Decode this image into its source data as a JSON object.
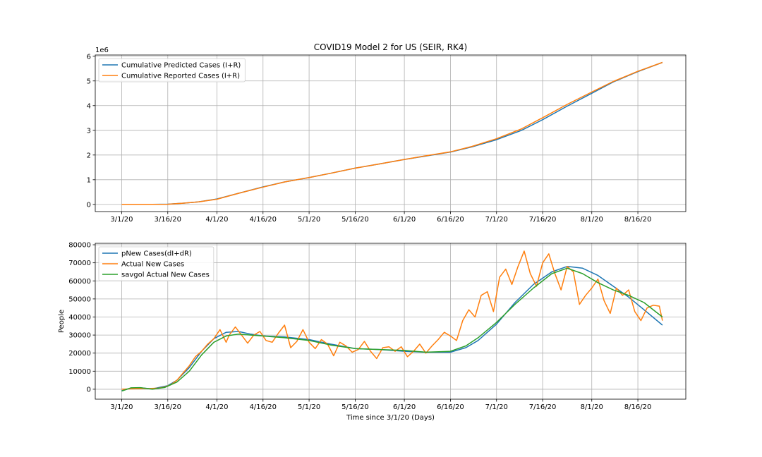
{
  "figure": {
    "title": "COVID19 Model 2 for US (SEIR, RK4)"
  },
  "chart_data": [
    {
      "type": "line",
      "title": "COVID19 Model 2 for US (SEIR, RK4)",
      "xlabel": "",
      "ylabel": "",
      "y_offset_label": "1e6",
      "x_ticks": [
        "3/1/20",
        "3/16/20",
        "4/1/20",
        "4/16/20",
        "5/1/20",
        "5/16/20",
        "6/1/20",
        "6/16/20",
        "7/1/20",
        "7/16/20",
        "8/1/20",
        "8/16/20"
      ],
      "x_tick_days": [
        0,
        15,
        31,
        46,
        61,
        76,
        92,
        107,
        122,
        137,
        153,
        168
      ],
      "y_ticks": [
        "0",
        "1",
        "2",
        "3",
        "4",
        "5",
        "6"
      ],
      "y_tick_values": [
        0,
        1,
        2,
        3,
        4,
        5,
        6
      ],
      "xlim": [
        -8.6,
        183.6
      ],
      "ylim": [
        -0.29,
        6.05
      ],
      "grid": true,
      "legend": "upper-left",
      "series": [
        {
          "name": "Cumulative Predicted Cases (I+R)",
          "color": "#1f77b4",
          "x": [
            0,
            10,
            15,
            20,
            25,
            31,
            38,
            46,
            53,
            61,
            68,
            76,
            84,
            92,
            99,
            107,
            114,
            122,
            130,
            137,
            145,
            153,
            160,
            168,
            176
          ],
          "y": [
            0,
            0.001,
            0.01,
            0.05,
            0.1,
            0.22,
            0.45,
            0.71,
            0.91,
            1.09,
            1.26,
            1.47,
            1.64,
            1.82,
            1.96,
            2.12,
            2.33,
            2.62,
            2.99,
            3.43,
            3.98,
            4.5,
            4.96,
            5.38,
            5.75
          ]
        },
        {
          "name": "Cumulative Reported Cases (I+R)",
          "color": "#ff7f0e",
          "x": [
            0,
            10,
            15,
            20,
            25,
            31,
            38,
            46,
            53,
            61,
            68,
            76,
            84,
            92,
            99,
            107,
            114,
            122,
            130,
            137,
            145,
            153,
            160,
            168,
            176
          ],
          "y": [
            0,
            0.001,
            0.008,
            0.05,
            0.1,
            0.21,
            0.45,
            0.7,
            0.91,
            1.09,
            1.26,
            1.47,
            1.64,
            1.82,
            1.97,
            2.13,
            2.35,
            2.66,
            3.05,
            3.51,
            4.05,
            4.55,
            4.98,
            5.39,
            5.75
          ]
        }
      ]
    },
    {
      "type": "line",
      "title": "",
      "xlabel": "Time since 3/1/20 (Days)",
      "ylabel": "People",
      "x_ticks": [
        "3/1/20",
        "3/16/20",
        "4/1/20",
        "4/16/20",
        "5/1/20",
        "5/16/20",
        "6/1/20",
        "6/16/20",
        "7/1/20",
        "7/16/20",
        "8/1/20",
        "8/16/20"
      ],
      "x_tick_days": [
        0,
        15,
        31,
        46,
        61,
        76,
        92,
        107,
        122,
        137,
        153,
        168
      ],
      "y_ticks": [
        "0",
        "10000",
        "20000",
        "30000",
        "40000",
        "50000",
        "60000",
        "70000",
        "80000"
      ],
      "y_tick_values": [
        0,
        10000,
        20000,
        30000,
        40000,
        50000,
        60000,
        70000,
        80000
      ],
      "xlim": [
        -8.6,
        183.6
      ],
      "ylim": [
        -5500,
        80800
      ],
      "grid": true,
      "legend": "upper-left",
      "series": [
        {
          "name": "pNew Cases(dI+dR)",
          "color": "#1f77b4",
          "x": [
            0,
            3,
            6,
            10,
            15,
            18,
            22,
            26,
            30,
            34,
            38,
            42,
            46,
            53,
            61,
            68,
            76,
            84,
            92,
            99,
            107,
            112,
            116,
            122,
            128,
            134,
            140,
            145,
            150,
            155,
            160,
            165,
            170,
            176
          ],
          "y": [
            -800,
            600,
            800,
            200,
            2000,
            5000,
            12000,
            21000,
            28000,
            31500,
            32000,
            30500,
            29500,
            29000,
            27500,
            25000,
            22500,
            22000,
            21000,
            20500,
            20500,
            23000,
            27000,
            36000,
            48000,
            58000,
            65000,
            68000,
            67000,
            63000,
            57000,
            51000,
            44000,
            35500
          ]
        },
        {
          "name": "Actual New Cases",
          "color": "#ff7f0e",
          "x": [
            0,
            3,
            6,
            9,
            12,
            14,
            16,
            18,
            20,
            22,
            24,
            26,
            28,
            30,
            32,
            34,
            35,
            37,
            39,
            41,
            43,
            45,
            47,
            49,
            51,
            53,
            55,
            57,
            59,
            61,
            63,
            65,
            67,
            69,
            71,
            73,
            75,
            77,
            79,
            81,
            83,
            85,
            87,
            89,
            91,
            93,
            95,
            97,
            99,
            101,
            103,
            105,
            107,
            109,
            111,
            113,
            115,
            117,
            119,
            121,
            123,
            125,
            127,
            129,
            131,
            133,
            135,
            137,
            139,
            141,
            143,
            145,
            147,
            149,
            151,
            153,
            155,
            157,
            159,
            161,
            163,
            165,
            167,
            169,
            171,
            173,
            175,
            176
          ],
          "y": [
            0,
            200,
            300,
            400,
            600,
            1200,
            2500,
            5000,
            9000,
            13000,
            18000,
            21000,
            25000,
            28000,
            33000,
            26000,
            30000,
            34500,
            30000,
            25500,
            30000,
            32000,
            27000,
            26000,
            31000,
            35500,
            23000,
            26500,
            33000,
            26000,
            22500,
            27500,
            25000,
            18500,
            26000,
            24000,
            20500,
            22000,
            26500,
            21000,
            17000,
            23000,
            23500,
            21000,
            23500,
            18000,
            21000,
            25000,
            20000,
            24000,
            27500,
            31500,
            29500,
            27000,
            38000,
            44000,
            40000,
            52000,
            54000,
            43000,
            62000,
            66500,
            58000,
            68000,
            76500,
            64000,
            57000,
            70000,
            75000,
            64000,
            55000,
            68000,
            65000,
            47000,
            52000,
            56000,
            61000,
            49000,
            42000,
            56000,
            52000,
            55000,
            43000,
            38000,
            45000,
            46500,
            46000,
            38000
          ]
        },
        {
          "name": "savgol Actual New Cases",
          "color": "#2ca02c",
          "x": [
            0,
            3,
            6,
            10,
            14,
            18,
            22,
            26,
            30,
            34,
            38,
            42,
            46,
            53,
            61,
            68,
            76,
            84,
            92,
            99,
            107,
            112,
            116,
            122,
            128,
            134,
            140,
            145,
            150,
            155,
            160,
            165,
            170,
            176
          ],
          "y": [
            -1000,
            800,
            900,
            0,
            1000,
            4000,
            10000,
            19000,
            26000,
            29500,
            30500,
            30000,
            29500,
            28500,
            27000,
            24500,
            22500,
            22000,
            21500,
            20500,
            21000,
            24000,
            28500,
            37000,
            47000,
            56000,
            64000,
            67000,
            64000,
            59000,
            55000,
            52000,
            48000,
            40000
          ]
        }
      ]
    }
  ]
}
